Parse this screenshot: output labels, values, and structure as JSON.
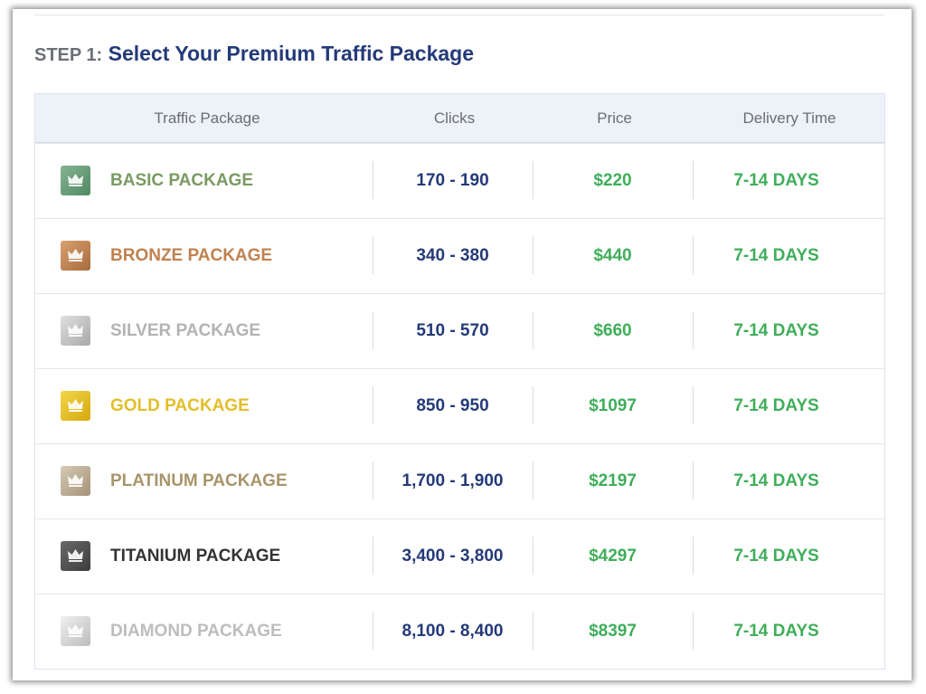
{
  "header": {
    "step": "STEP 1:",
    "title": "Select Your Premium Traffic Package"
  },
  "table": {
    "columns": [
      "Traffic Package",
      "Clicks",
      "Price",
      "Delivery Time"
    ],
    "rows": [
      {
        "package": "BASIC PACKAGE",
        "clicks": "170 - 190",
        "price": "$220",
        "delivery": "7-14 DAYS"
      },
      {
        "package": "BRONZE PACKAGE",
        "clicks": "340 - 380",
        "price": "$440",
        "delivery": "7-14 DAYS"
      },
      {
        "package": "SILVER PACKAGE",
        "clicks": "510 - 570",
        "price": "$660",
        "delivery": "7-14 DAYS"
      },
      {
        "package": "GOLD PACKAGE",
        "clicks": "850 - 950",
        "price": "$1097",
        "delivery": "7-14 DAYS"
      },
      {
        "package": "PLATINUM PACKAGE",
        "clicks": "1,700 - 1,900",
        "price": "$2197",
        "delivery": "7-14 DAYS"
      },
      {
        "package": "TITANIUM PACKAGE",
        "clicks": "3,400 - 3,800",
        "price": "$4297",
        "delivery": "7-14 DAYS"
      },
      {
        "package": "DIAMOND PACKAGE",
        "clicks": "8,100 - 8,400",
        "price": "$8397",
        "delivery": "7-14 DAYS"
      }
    ]
  }
}
